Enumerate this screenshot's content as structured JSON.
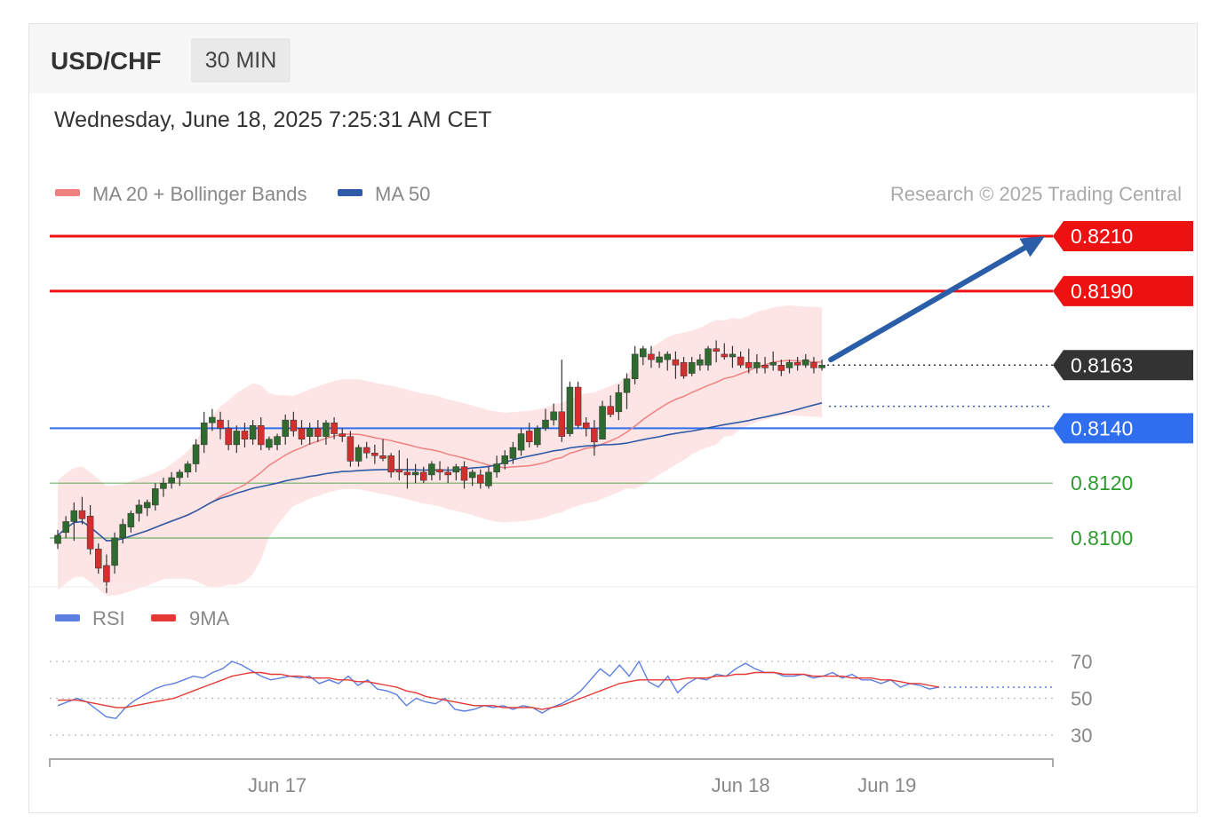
{
  "header": {
    "symbol": "USD/CHF",
    "timeframe": "30 MIN"
  },
  "timestamp": "Wednesday, June 18, 2025 7:25:31 AM CET",
  "legend": {
    "ma20_label": "MA 20 + Bollinger Bands",
    "ma50_label": "MA 50",
    "credit": "Research © 2025 Trading Central",
    "ma20_color": "#f08080",
    "ma50_color": "#2e5aa8"
  },
  "rsi_legend": {
    "rsi_label": "RSI",
    "ma9_label": "9MA",
    "rsi_color": "#5b7fe0",
    "ma9_color": "#e53935"
  },
  "chart_data": [
    {
      "type": "candlestick",
      "title": "USD/CHF 30 MIN",
      "ylim": [
        0.807,
        0.823
      ],
      "current_price": {
        "value": 0.8163,
        "label": "0.8163",
        "color": "#333333"
      },
      "levels": [
        {
          "value": 0.821,
          "label": "0.8210",
          "kind": "resistance",
          "color": "#ee1111",
          "style": "badge"
        },
        {
          "value": 0.819,
          "label": "0.8190",
          "kind": "resistance",
          "color": "#ee1111",
          "style": "badge"
        },
        {
          "value": 0.814,
          "label": "0.8140",
          "kind": "pivot",
          "color": "#2f6fef",
          "style": "badge"
        },
        {
          "value": 0.812,
          "label": "0.8120",
          "kind": "support",
          "color": "#2e9b2e",
          "style": "text"
        },
        {
          "value": 0.81,
          "label": "0.8100",
          "kind": "support",
          "color": "#2e9b2e",
          "style": "text"
        }
      ],
      "forecast_arrow": {
        "from": 0.8165,
        "to": 0.821,
        "color": "#2b5ea8"
      },
      "ma50_last": 0.8148,
      "x_ticks": [
        "Jun 17",
        "Jun 18",
        "Jun 19"
      ],
      "x_tick_index": [
        27,
        84,
        102
      ],
      "candles": [
        [
          0.8098,
          0.8103,
          0.8096,
          0.8101
        ],
        [
          0.8102,
          0.8108,
          0.81,
          0.8106
        ],
        [
          0.8106,
          0.8113,
          0.8099,
          0.811
        ],
        [
          0.811,
          0.8115,
          0.8105,
          0.8107
        ],
        [
          0.8108,
          0.8112,
          0.8094,
          0.8096
        ],
        [
          0.8096,
          0.8098,
          0.8087,
          0.8089
        ],
        [
          0.809,
          0.8094,
          0.808,
          0.8084
        ],
        [
          0.809,
          0.8102,
          0.8087,
          0.81
        ],
        [
          0.81,
          0.8107,
          0.8098,
          0.8105
        ],
        [
          0.8104,
          0.811,
          0.8102,
          0.8109
        ],
        [
          0.8109,
          0.8114,
          0.8106,
          0.8112
        ],
        [
          0.8111,
          0.8114,
          0.8108,
          0.8113
        ],
        [
          0.8112,
          0.812,
          0.811,
          0.8118
        ],
        [
          0.8118,
          0.8122,
          0.8115,
          0.812
        ],
        [
          0.812,
          0.8124,
          0.8118,
          0.8122
        ],
        [
          0.8122,
          0.8125,
          0.8119,
          0.8124
        ],
        [
          0.8124,
          0.8128,
          0.8122,
          0.8127
        ],
        [
          0.8127,
          0.8136,
          0.8124,
          0.8134
        ],
        [
          0.8134,
          0.8146,
          0.8131,
          0.8142
        ],
        [
          0.8142,
          0.8147,
          0.8139,
          0.8144
        ],
        [
          0.8143,
          0.8146,
          0.8136,
          0.814
        ],
        [
          0.814,
          0.8143,
          0.8132,
          0.8134
        ],
        [
          0.8134,
          0.8141,
          0.8131,
          0.8139
        ],
        [
          0.8139,
          0.8142,
          0.8133,
          0.8136
        ],
        [
          0.8136,
          0.8143,
          0.8134,
          0.8141
        ],
        [
          0.8141,
          0.8144,
          0.8132,
          0.8134
        ],
        [
          0.8133,
          0.8137,
          0.8132,
          0.8136
        ],
        [
          0.8134,
          0.8138,
          0.8132,
          0.8137
        ],
        [
          0.8137,
          0.8145,
          0.8134,
          0.8143
        ],
        [
          0.8143,
          0.8146,
          0.8137,
          0.8139
        ],
        [
          0.814,
          0.8143,
          0.8134,
          0.8136
        ],
        [
          0.8137,
          0.8142,
          0.8134,
          0.814
        ],
        [
          0.814,
          0.8143,
          0.8135,
          0.8137
        ],
        [
          0.8137,
          0.8143,
          0.8134,
          0.8142
        ],
        [
          0.8142,
          0.8144,
          0.8136,
          0.8138
        ],
        [
          0.8138,
          0.814,
          0.8135,
          0.8137
        ],
        [
          0.8137,
          0.8139,
          0.8126,
          0.8128
        ],
        [
          0.8128,
          0.8134,
          0.8126,
          0.8133
        ],
        [
          0.8133,
          0.8135,
          0.8129,
          0.8131
        ],
        [
          0.8131,
          0.8134,
          0.8127,
          0.813
        ],
        [
          0.813,
          0.8136,
          0.8128,
          0.8129
        ],
        [
          0.813,
          0.8131,
          0.8122,
          0.8124
        ],
        [
          0.8125,
          0.8132,
          0.8121,
          0.8124
        ],
        [
          0.8124,
          0.8129,
          0.8118,
          0.8123
        ],
        [
          0.8123,
          0.8127,
          0.812,
          0.8124
        ],
        [
          0.8124,
          0.8126,
          0.812,
          0.8121
        ],
        [
          0.8123,
          0.8128,
          0.8121,
          0.8127
        ],
        [
          0.8125,
          0.8128,
          0.8121,
          0.8124
        ],
        [
          0.8124,
          0.8126,
          0.812,
          0.8123
        ],
        [
          0.8124,
          0.8127,
          0.8121,
          0.8126
        ],
        [
          0.8126,
          0.8128,
          0.8118,
          0.8121
        ],
        [
          0.8122,
          0.8125,
          0.8119,
          0.8124
        ],
        [
          0.8123,
          0.8125,
          0.8118,
          0.812
        ],
        [
          0.8119,
          0.8126,
          0.8118,
          0.8124
        ],
        [
          0.8124,
          0.813,
          0.8122,
          0.8127
        ],
        [
          0.8127,
          0.8132,
          0.8125,
          0.813
        ],
        [
          0.8129,
          0.8135,
          0.8127,
          0.8133
        ],
        [
          0.8132,
          0.814,
          0.813,
          0.8138
        ],
        [
          0.8139,
          0.8142,
          0.8133,
          0.8135
        ],
        [
          0.8134,
          0.8141,
          0.8133,
          0.814
        ],
        [
          0.814,
          0.8147,
          0.8139,
          0.8143
        ],
        [
          0.8143,
          0.8149,
          0.8141,
          0.8146
        ],
        [
          0.8146,
          0.8165,
          0.8135,
          0.8137
        ],
        [
          0.8138,
          0.8157,
          0.8137,
          0.8155
        ],
        [
          0.8155,
          0.8157,
          0.814,
          0.8141
        ],
        [
          0.8142,
          0.8144,
          0.8137,
          0.814
        ],
        [
          0.814,
          0.8143,
          0.813,
          0.8135
        ],
        [
          0.8136,
          0.815,
          0.8136,
          0.8148
        ],
        [
          0.8148,
          0.8152,
          0.8144,
          0.8145
        ],
        [
          0.8146,
          0.8156,
          0.8143,
          0.8153
        ],
        [
          0.8153,
          0.816,
          0.8147,
          0.8158
        ],
        [
          0.8158,
          0.817,
          0.8156,
          0.8167
        ],
        [
          0.8166,
          0.817,
          0.8163,
          0.8169
        ],
        [
          0.8167,
          0.817,
          0.8162,
          0.8165
        ],
        [
          0.8164,
          0.8168,
          0.8162,
          0.8166
        ],
        [
          0.8165,
          0.8168,
          0.8161,
          0.8167
        ],
        [
          0.8165,
          0.8168,
          0.8158,
          0.8163
        ],
        [
          0.8164,
          0.8166,
          0.8158,
          0.8159
        ],
        [
          0.816,
          0.8166,
          0.8159,
          0.8164
        ],
        [
          0.8163,
          0.8167,
          0.8161,
          0.8165
        ],
        [
          0.8163,
          0.817,
          0.8161,
          0.8169
        ],
        [
          0.8169,
          0.8172,
          0.8164,
          0.8168
        ],
        [
          0.8167,
          0.8171,
          0.8165,
          0.8166
        ],
        [
          0.8166,
          0.817,
          0.8162,
          0.8167
        ],
        [
          0.8166,
          0.8168,
          0.8162,
          0.8163
        ],
        [
          0.8164,
          0.8169,
          0.816,
          0.8162
        ],
        [
          0.8162,
          0.8167,
          0.816,
          0.8164
        ],
        [
          0.8163,
          0.8166,
          0.816,
          0.8162
        ],
        [
          0.8163,
          0.8168,
          0.8161,
          0.8164
        ],
        [
          0.8163,
          0.8165,
          0.8159,
          0.8161
        ],
        [
          0.8162,
          0.8165,
          0.816,
          0.8164
        ],
        [
          0.8164,
          0.8166,
          0.8161,
          0.8163
        ],
        [
          0.8163,
          0.8167,
          0.8162,
          0.8165
        ],
        [
          0.8164,
          0.8166,
          0.816,
          0.8162
        ],
        [
          0.8162,
          0.8165,
          0.8161,
          0.8163
        ]
      ]
    },
    {
      "type": "line",
      "title": "RSI",
      "ylim": [
        20,
        80
      ],
      "y_ticks": [
        70,
        50,
        30
      ],
      "series": [
        {
          "name": "RSI",
          "color": "#5b7fe0",
          "values": [
            46,
            48,
            50,
            48,
            44,
            40,
            39,
            45,
            49,
            52,
            55,
            57,
            58,
            60,
            62,
            61,
            64,
            66,
            70,
            68,
            65,
            62,
            60,
            61,
            62,
            61,
            62,
            58,
            60,
            58,
            62,
            57,
            60,
            55,
            54,
            52,
            46,
            50,
            48,
            47,
            50,
            44,
            43,
            44,
            46,
            45,
            46,
            44,
            46,
            45,
            42,
            45,
            47,
            50,
            54,
            60,
            66,
            62,
            68,
            62,
            70,
            59,
            56,
            62,
            53,
            58,
            61,
            60,
            63,
            62,
            66,
            69,
            66,
            64,
            64,
            62,
            62,
            63,
            61,
            62,
            64,
            61,
            63,
            60,
            60,
            58,
            60,
            56,
            58,
            57,
            55,
            56
          ]
        },
        {
          "name": "9MA",
          "color": "#e53935",
          "values": [
            49,
            49,
            49,
            48,
            47,
            46,
            45,
            45,
            46,
            47,
            48,
            49,
            50,
            52,
            54,
            56,
            58,
            60,
            62,
            63,
            64,
            64,
            63,
            63,
            62,
            62,
            61,
            61,
            61,
            60,
            60,
            59,
            59,
            58,
            57,
            56,
            54,
            53,
            51,
            50,
            49,
            48,
            47,
            46,
            46,
            46,
            45,
            45,
            45,
            45,
            44,
            45,
            46,
            48,
            50,
            52,
            54,
            56,
            58,
            59,
            60,
            60,
            60,
            60,
            60,
            61,
            61,
            61,
            62,
            62,
            63,
            63,
            64,
            64,
            64,
            63,
            63,
            63,
            62,
            62,
            62,
            62,
            61,
            61,
            61,
            60,
            60,
            59,
            58,
            58,
            57,
            56
          ]
        }
      ],
      "last_value": 56
    }
  ]
}
